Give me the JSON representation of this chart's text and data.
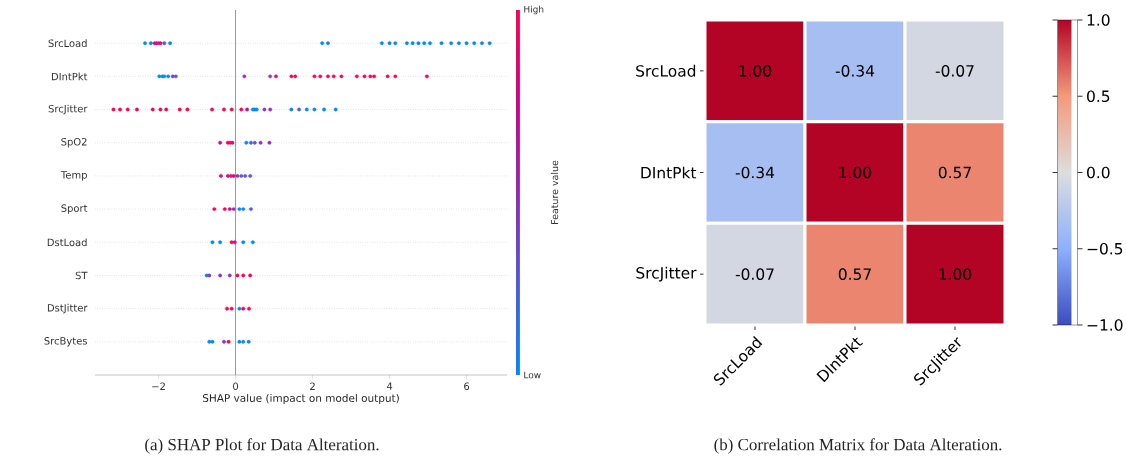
{
  "chart_data": [
    {
      "type": "scatter",
      "orientation": "horizontal",
      "xlabel": "SHAP value (impact on model output)",
      "clabel": "Feature value",
      "categories": [
        "SrcLoad",
        "DIntPkt",
        "SrcJitter",
        "SpO2",
        "Temp",
        "Sport",
        "DstLoad",
        "ST",
        "DstJitter",
        "SrcBytes"
      ],
      "xlim": [
        -3.65,
        7.05
      ],
      "xticks": [
        {
          "value": -2,
          "label": "−2"
        },
        0,
        2,
        4,
        6
      ],
      "grid": "y",
      "marker": "circle",
      "ref_lines": [
        {
          "axis": "x",
          "value": 0,
          "color": "#999999"
        }
      ],
      "annotations": [
        "(a)  SHAP Plot for Data Alteration.",
        "Low",
        "High"
      ],
      "series": [
        {
          "x": [
            "SrcLoad",
            "SrcLoad",
            "SrcLoad",
            "SrcLoad",
            "SrcLoad",
            "SrcLoad",
            "SrcLoad",
            "SrcLoad",
            "SrcLoad",
            "SrcLoad",
            "SrcLoad",
            "SrcLoad",
            "SrcLoad",
            "SrcLoad",
            "SrcLoad",
            "SrcLoad",
            "SrcLoad",
            "SrcLoad",
            "SrcLoad",
            "SrcLoad",
            "SrcLoad",
            "SrcLoad",
            "SrcLoad",
            "SrcLoad",
            "SrcLoad"
          ],
          "values": [
            -2.35,
            -2.2,
            -2.1,
            -2.05,
            -2.0,
            -1.95,
            -1.85,
            -1.7,
            2.25,
            2.4,
            3.8,
            4.0,
            4.15,
            4.45,
            4.6,
            4.75,
            4.9,
            5.05,
            5.35,
            5.6,
            5.8,
            6.0,
            6.2,
            6.4,
            6.6
          ],
          "colors": [
            "#008bfb",
            "#008bfb",
            "#d40a8f",
            "#ff0052",
            "#9a2fbf",
            "#ff0052",
            "#5a5ad8",
            "#008bfb",
            "#008bfb",
            "#008bfb",
            "#008bfb",
            "#008bfb",
            "#008bfb",
            "#008bfb",
            "#008bfb",
            "#008bfb",
            "#008bfb",
            "#008bfb",
            "#008bfb",
            "#008bfb",
            "#008bfb",
            "#008bfb",
            "#008bfb",
            "#008bfb",
            "#008bfb"
          ]
        },
        {
          "x": [
            "DIntPkt",
            "DIntPkt",
            "DIntPkt",
            "DIntPkt",
            "DIntPkt",
            "DIntPkt",
            "DIntPkt",
            "DIntPkt",
            "DIntPkt",
            "DIntPkt",
            "DIntPkt",
            "DIntPkt",
            "DIntPkt",
            "DIntPkt",
            "DIntPkt",
            "DIntPkt",
            "DIntPkt",
            "DIntPkt",
            "DIntPkt",
            "DIntPkt",
            "DIntPkt",
            "DIntPkt",
            "DIntPkt"
          ],
          "values": [
            -1.98,
            -1.9,
            -1.85,
            -1.75,
            -1.63,
            -1.55,
            0.23,
            0.9,
            1.05,
            1.45,
            1.55,
            2.05,
            2.2,
            2.4,
            2.55,
            2.75,
            3.15,
            3.35,
            3.5,
            3.6,
            3.95,
            4.15,
            4.97
          ],
          "colors": [
            "#008bfb",
            "#008bfb",
            "#008bfb",
            "#008bfb",
            "#9a2fbf",
            "#5a5ad8",
            "#9a2fbf",
            "#9a2fbf",
            "#d40a8f",
            "#ff0052",
            "#ff0052",
            "#ff0052",
            "#ff0052",
            "#ff0052",
            "#ff0052",
            "#ff0052",
            "#ff0052",
            "#ff0052",
            "#ff0052",
            "#ff0052",
            "#ff0052",
            "#ff0052",
            "#ff0052"
          ]
        },
        {
          "x": [
            "SrcJitter",
            "SrcJitter",
            "SrcJitter",
            "SrcJitter",
            "SrcJitter",
            "SrcJitter",
            "SrcJitter",
            "SrcJitter",
            "SrcJitter",
            "SrcJitter",
            "SrcJitter",
            "SrcJitter",
            "SrcJitter",
            "SrcJitter",
            "SrcJitter",
            "SrcJitter",
            "SrcJitter",
            "SrcJitter",
            "SrcJitter",
            "SrcJitter",
            "SrcJitter",
            "SrcJitter",
            "SrcJitter",
            "SrcJitter",
            "SrcJitter"
          ],
          "values": [
            -3.17,
            -3.0,
            -2.8,
            -2.56,
            -2.15,
            -1.95,
            -1.8,
            -1.45,
            -1.25,
            -0.61,
            -0.3,
            -0.1,
            0.15,
            0.3,
            0.45,
            0.5,
            0.55,
            0.75,
            0.9,
            1.45,
            1.65,
            1.85,
            2.05,
            2.3,
            2.6
          ],
          "colors": [
            "#ff0052",
            "#ff0052",
            "#ff0052",
            "#ff0052",
            "#ff0052",
            "#ff0052",
            "#ff0052",
            "#ff0052",
            "#ff0052",
            "#ff0052",
            "#ff0052",
            "#ff0052",
            "#ff0052",
            "#d40a8f",
            "#008bfb",
            "#008bfb",
            "#008bfb",
            "#9a2fbf",
            "#9a2fbf",
            "#008bfb",
            "#5a5ad8",
            "#008bfb",
            "#008bfb",
            "#008bfb",
            "#008bfb"
          ]
        },
        {
          "x": [
            "SpO2",
            "SpO2",
            "SpO2",
            "SpO2",
            "SpO2",
            "SpO2",
            "SpO2",
            "SpO2",
            "SpO2"
          ],
          "values": [
            -0.4,
            -0.2,
            -0.14,
            -0.08,
            0.28,
            0.4,
            0.5,
            0.65,
            0.88
          ],
          "colors": [
            "#d40a8f",
            "#ff0052",
            "#ff0052",
            "#d40a8f",
            "#008bfb",
            "#5a5ad8",
            "#5a5ad8",
            "#9a2fbf",
            "#9a2fbf"
          ]
        },
        {
          "x": [
            "Temp",
            "Temp",
            "Temp",
            "Temp",
            "Temp",
            "Temp",
            "Temp",
            "Temp"
          ],
          "values": [
            -0.38,
            -0.2,
            -0.12,
            -0.05,
            0.05,
            0.15,
            0.25,
            0.38
          ],
          "colors": [
            "#d40a8f",
            "#d40a8f",
            "#ff0052",
            "#d40a8f",
            "#9a2fbf",
            "#5a5ad8",
            "#5a5ad8",
            "#5a5ad8"
          ]
        },
        {
          "x": [
            "Sport",
            "Sport",
            "Sport",
            "Sport",
            "Sport",
            "Sport",
            "Sport"
          ],
          "values": [
            -0.55,
            -0.28,
            -0.15,
            -0.05,
            0.1,
            0.2,
            0.4
          ],
          "colors": [
            "#ff0052",
            "#ff0052",
            "#d40a8f",
            "#9a2fbf",
            "#008bfb",
            "#008bfb",
            "#5a5ad8"
          ]
        },
        {
          "x": [
            "DstLoad",
            "DstLoad",
            "DstLoad",
            "DstLoad",
            "DstLoad",
            "DstLoad"
          ],
          "values": [
            -0.6,
            -0.4,
            -0.1,
            -0.02,
            0.2,
            0.45
          ],
          "colors": [
            "#008bfb",
            "#008bfb",
            "#ff0052",
            "#d40a8f",
            "#008bfb",
            "#008bfb"
          ]
        },
        {
          "x": [
            "ST",
            "ST",
            "ST",
            "ST",
            "ST",
            "ST",
            "ST"
          ],
          "values": [
            -0.75,
            -0.68,
            -0.4,
            -0.15,
            0.05,
            0.2,
            0.38
          ],
          "colors": [
            "#008bfb",
            "#9a2fbf",
            "#9a2fbf",
            "#9a2fbf",
            "#ff0052",
            "#ff0052",
            "#ff0052"
          ]
        },
        {
          "x": [
            "DstJitter",
            "DstJitter",
            "DstJitter",
            "DstJitter",
            "DstJitter"
          ],
          "values": [
            -0.22,
            -0.1,
            0.1,
            0.2,
            0.35
          ],
          "colors": [
            "#ff0052",
            "#ff0052",
            "#008bfb",
            "#ff0052",
            "#ff0052"
          ]
        },
        {
          "x": [
            "SrcBytes",
            "SrcBytes",
            "SrcBytes",
            "SrcBytes",
            "SrcBytes",
            "SrcBytes",
            "SrcBytes"
          ],
          "values": [
            -0.68,
            -0.6,
            -0.3,
            -0.18,
            0.1,
            0.2,
            0.34
          ],
          "colors": [
            "#008bfb",
            "#008bfb",
            "#9a2fbf",
            "#ff0052",
            "#008bfb",
            "#008bfb",
            "#008bfb"
          ]
        }
      ]
    },
    {
      "type": "heatmap",
      "categories": [
        "SrcLoad",
        "DIntPkt",
        "SrcJitter"
      ],
      "y_categories": [
        "SrcLoad",
        "DIntPkt",
        "SrcJitter"
      ],
      "cells": [
        [
          1.0,
          -0.34,
          -0.07
        ],
        [
          -0.34,
          1.0,
          0.57
        ],
        [
          -0.07,
          0.57,
          1.0
        ]
      ],
      "cell_labels": [
        [
          "1.00",
          "-0.34",
          "-0.07"
        ],
        [
          "-0.34",
          "1.00",
          "0.57"
        ],
        [
          "-0.07",
          "0.57",
          "1.00"
        ]
      ],
      "clim": [
        -1,
        1
      ],
      "cticks": [
        {
          "value": -1,
          "label": "−1.0"
        },
        {
          "value": -0.5,
          "label": "−0.5"
        },
        {
          "value": 0,
          "label": "0.0"
        },
        {
          "value": 0.5,
          "label": "0.5"
        },
        {
          "value": 1,
          "label": "1.0"
        }
      ],
      "annotations": [
        "(b)  Correlation Matrix for Data Alteration."
      ]
    }
  ]
}
